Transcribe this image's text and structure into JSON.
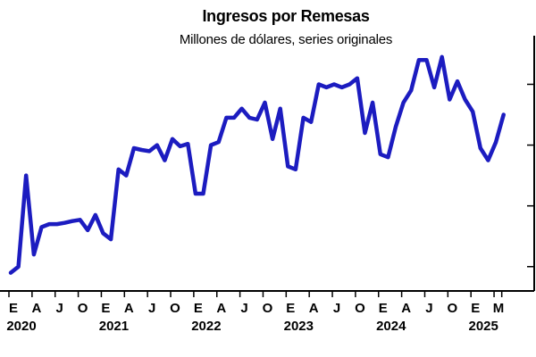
{
  "chart_data": {
    "type": "line",
    "title": "Ingresos por Remesas",
    "subtitle": "Millones de dólares, series originales",
    "xlabel": "",
    "ylabel": "",
    "grid": false,
    "legend": "none",
    "line_color": "#1c1cc0",
    "axis_color": "#000000",
    "month_tick_labels": [
      "E",
      "A",
      "J",
      "O",
      "E",
      "A",
      "J",
      "O",
      "E",
      "A",
      "J",
      "O",
      "E",
      "A",
      "J",
      "O",
      "E",
      "A",
      "J",
      "O",
      "E",
      "M"
    ],
    "year_labels": [
      "2020",
      "2021",
      "2022",
      "2023",
      "2024",
      "2025"
    ],
    "x_range": [
      "2020-01",
      "2025-05"
    ],
    "series": [
      {
        "x": [
          "2020-01",
          "2020-02",
          "2020-03",
          "2020-04",
          "2020-05",
          "2020-06",
          "2020-07",
          "2020-08",
          "2020-09",
          "2020-10",
          "2020-11",
          "2020-12",
          "2021-01",
          "2021-02",
          "2021-03",
          "2021-04",
          "2021-05",
          "2021-06",
          "2021-07",
          "2021-08",
          "2021-09",
          "2021-10",
          "2021-11",
          "2021-12",
          "2022-01",
          "2022-02",
          "2022-03",
          "2022-04",
          "2022-05",
          "2022-06",
          "2022-07",
          "2022-08",
          "2022-09",
          "2022-10",
          "2022-11",
          "2022-12",
          "2023-01",
          "2023-02",
          "2023-03",
          "2023-04",
          "2023-05",
          "2023-06",
          "2023-07",
          "2023-08",
          "2023-09",
          "2023-10",
          "2023-11",
          "2023-12",
          "2024-01",
          "2024-02",
          "2024-03",
          "2024-04",
          "2024-05",
          "2024-06",
          "2024-07",
          "2024-08",
          "2024-09",
          "2024-10",
          "2024-11",
          "2024-12",
          "2025-01",
          "2025-02",
          "2025-03",
          "2025-04",
          "2025-05"
        ],
        "values": [
          2.9,
          3.0,
          4.5,
          3.2,
          3.65,
          3.7,
          3.7,
          3.72,
          3.75,
          3.77,
          3.6,
          3.85,
          3.55,
          3.45,
          4.6,
          4.5,
          4.95,
          4.92,
          4.9,
          5.0,
          4.75,
          5.1,
          4.98,
          5.02,
          4.2,
          4.2,
          5.0,
          5.05,
          5.45,
          5.45,
          5.6,
          5.45,
          5.42,
          5.7,
          5.1,
          5.6,
          4.65,
          4.6,
          5.45,
          5.38,
          6.0,
          5.95,
          6.0,
          5.95,
          6.0,
          6.1,
          5.2,
          5.7,
          4.85,
          4.8,
          5.3,
          5.7,
          5.9,
          6.4,
          6.4,
          5.95,
          6.45,
          5.75,
          6.05,
          5.75,
          5.55,
          4.95,
          4.75,
          5.05,
          5.5
        ]
      }
    ],
    "ylim": [
      2.6,
      6.8
    ],
    "y_major_ticks": [
      3.0,
      4.0,
      5.0,
      6.0
    ]
  }
}
